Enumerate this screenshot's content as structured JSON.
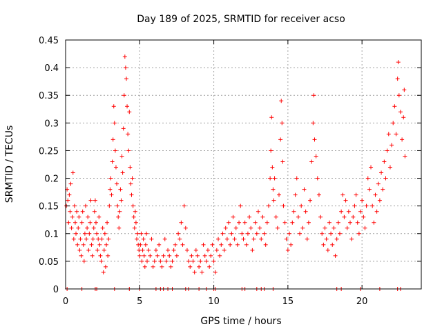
{
  "chart_data": {
    "type": "scatter",
    "title": "Day 189 of 2025, SRMTID for receiver acso",
    "xlabel": "GPS time / hours",
    "ylabel": "SRMTID / TECUs",
    "xlim": [
      0,
      24
    ],
    "ylim": [
      0,
      0.45
    ],
    "x_ticks": [
      0,
      5,
      10,
      15,
      20
    ],
    "x_tick_labels": [
      "0",
      "5",
      "10",
      "15",
      "20"
    ],
    "y_ticks": [
      0,
      0.05,
      0.1,
      0.15,
      0.2,
      0.25,
      0.3,
      0.35,
      0.4,
      0.45
    ],
    "y_tick_labels": [
      "0",
      "0.05",
      "0.1",
      "0.15",
      "0.2",
      "0.25",
      "0.3",
      "0.35",
      "0.4",
      "0.45"
    ],
    "grid": true,
    "marker": "+",
    "color": "#ff0000",
    "zero_marks_x": [
      0.1,
      1.1,
      2.0,
      2.1,
      3.3,
      4.3,
      5.0,
      6.1,
      6.4,
      6.6,
      6.9,
      7.2,
      8.1,
      8.3,
      9.0,
      9.5,
      10.0,
      10.1,
      11.9,
      12.1,
      12.9,
      13.2,
      13.4,
      14.0,
      18.3,
      18.6,
      19.9,
      21.2,
      22.4,
      22.6
    ],
    "series": [
      {
        "name": "SRMTID",
        "points": [
          [
            0.05,
            0.15
          ],
          [
            0.1,
            0.18
          ],
          [
            0.15,
            0.16
          ],
          [
            0.2,
            0.12
          ],
          [
            0.25,
            0.17
          ],
          [
            0.3,
            0.14
          ],
          [
            0.35,
            0.19
          ],
          [
            0.4,
            0.11
          ],
          [
            0.45,
            0.13
          ],
          [
            0.5,
            0.21
          ],
          [
            0.55,
            0.09
          ],
          [
            0.6,
            0.15
          ],
          [
            0.65,
            0.12
          ],
          [
            0.7,
            0.1
          ],
          [
            0.75,
            0.14
          ],
          [
            0.8,
            0.08
          ],
          [
            0.85,
            0.11
          ],
          [
            0.9,
            0.13
          ],
          [
            0.95,
            0.07
          ],
          [
            1.0,
            0.09
          ],
          [
            1.05,
            0.06
          ],
          [
            1.1,
            0.12
          ],
          [
            1.15,
            0.14
          ],
          [
            1.2,
            0.08
          ],
          [
            1.25,
            0.05
          ],
          [
            1.3,
            0.1
          ],
          [
            1.35,
            0.15
          ],
          [
            1.4,
            0.09
          ],
          [
            1.45,
            0.11
          ],
          [
            1.5,
            0.13
          ],
          [
            1.55,
            0.07
          ],
          [
            1.6,
            0.1
          ],
          [
            1.65,
            0.12
          ],
          [
            1.7,
            0.16
          ],
          [
            1.75,
            0.08
          ],
          [
            1.8,
            0.06
          ],
          [
            1.85,
            0.09
          ],
          [
            1.9,
            0.11
          ],
          [
            1.95,
            0.14
          ],
          [
            2.0,
            0.16
          ],
          [
            2.05,
            0.12
          ],
          [
            2.1,
            0.1
          ],
          [
            2.15,
            0.07
          ],
          [
            2.2,
            0.09
          ],
          [
            2.25,
            0.13
          ],
          [
            2.3,
            0.08
          ],
          [
            2.35,
            0.06
          ],
          [
            2.4,
            0.05
          ],
          [
            2.45,
            0.09
          ],
          [
            2.5,
            0.11
          ],
          [
            2.55,
            0.03
          ],
          [
            2.6,
            0.07
          ],
          [
            2.65,
            0.1
          ],
          [
            2.7,
            0.04
          ],
          [
            2.75,
            0.08
          ],
          [
            2.8,
            0.12
          ],
          [
            2.85,
            0.06
          ],
          [
            2.9,
            0.09
          ],
          [
            2.95,
            0.15
          ],
          [
            3.0,
            0.18
          ],
          [
            3.05,
            0.2
          ],
          [
            3.1,
            0.17
          ],
          [
            3.15,
            0.23
          ],
          [
            3.2,
            0.27
          ],
          [
            3.25,
            0.33
          ],
          [
            3.3,
            0.3
          ],
          [
            3.35,
            0.25
          ],
          [
            3.4,
            0.22
          ],
          [
            3.45,
            0.19
          ],
          [
            3.5,
            0.15
          ],
          [
            3.55,
            0.13
          ],
          [
            3.6,
            0.11
          ],
          [
            3.65,
            0.14
          ],
          [
            3.7,
            0.18
          ],
          [
            3.75,
            0.16
          ],
          [
            3.8,
            0.24
          ],
          [
            3.85,
            0.21
          ],
          [
            3.9,
            0.29
          ],
          [
            3.95,
            0.35
          ],
          [
            4.0,
            0.42
          ],
          [
            4.05,
            0.4
          ],
          [
            4.1,
            0.38
          ],
          [
            4.15,
            0.33
          ],
          [
            4.2,
            0.28
          ],
          [
            4.25,
            0.25
          ],
          [
            4.3,
            0.32
          ],
          [
            4.35,
            0.22
          ],
          [
            4.4,
            0.19
          ],
          [
            4.45,
            0.17
          ],
          [
            4.5,
            0.2
          ],
          [
            4.55,
            0.15
          ],
          [
            4.6,
            0.13
          ],
          [
            4.65,
            0.11
          ],
          [
            4.7,
            0.14
          ],
          [
            4.75,
            0.12
          ],
          [
            4.8,
            0.09
          ],
          [
            4.85,
            0.1
          ],
          [
            4.9,
            0.08
          ],
          [
            4.95,
            0.07
          ],
          [
            5.0,
            0.06
          ],
          [
            5.05,
            0.08
          ],
          [
            5.1,
            0.1
          ],
          [
            5.15,
            0.05
          ],
          [
            5.2,
            0.07
          ],
          [
            5.25,
            0.09
          ],
          [
            5.3,
            0.06
          ],
          [
            5.35,
            0.04
          ],
          [
            5.4,
            0.08
          ],
          [
            5.45,
            0.1
          ],
          [
            5.5,
            0.05
          ],
          [
            5.6,
            0.07
          ],
          [
            5.7,
            0.06
          ],
          [
            5.8,
            0.09
          ],
          [
            5.9,
            0.04
          ],
          [
            6.0,
            0.05
          ],
          [
            6.1,
            0.07
          ],
          [
            6.2,
            0.06
          ],
          [
            6.3,
            0.08
          ],
          [
            6.4,
            0.05
          ],
          [
            6.5,
            0.04
          ],
          [
            6.6,
            0.06
          ],
          [
            6.7,
            0.09
          ],
          [
            6.8,
            0.05
          ],
          [
            6.9,
            0.07
          ],
          [
            7.0,
            0.06
          ],
          [
            7.1,
            0.04
          ],
          [
            7.2,
            0.05
          ],
          [
            7.3,
            0.07
          ],
          [
            7.4,
            0.08
          ],
          [
            7.5,
            0.06
          ],
          [
            7.6,
            0.1
          ],
          [
            7.7,
            0.09
          ],
          [
            7.8,
            0.12
          ],
          [
            7.9,
            0.08
          ],
          [
            8.0,
            0.15
          ],
          [
            8.1,
            0.11
          ],
          [
            8.2,
            0.07
          ],
          [
            8.3,
            0.05
          ],
          [
            8.4,
            0.04
          ],
          [
            8.5,
            0.06
          ],
          [
            8.6,
            0.05
          ],
          [
            8.7,
            0.03
          ],
          [
            8.8,
            0.07
          ],
          [
            8.9,
            0.06
          ],
          [
            9.0,
            0.04
          ],
          [
            9.1,
            0.05
          ],
          [
            9.2,
            0.03
          ],
          [
            9.3,
            0.08
          ],
          [
            9.4,
            0.06
          ],
          [
            9.5,
            0.05
          ],
          [
            9.6,
            0.07
          ],
          [
            9.7,
            0.04
          ],
          [
            9.8,
            0.06
          ],
          [
            9.9,
            0.08
          ],
          [
            10.0,
            0.05
          ],
          [
            10.1,
            0.03
          ],
          [
            10.2,
            0.07
          ],
          [
            10.3,
            0.09
          ],
          [
            10.4,
            0.06
          ],
          [
            10.5,
            0.08
          ],
          [
            10.6,
            0.1
          ],
          [
            10.7,
            0.07
          ],
          [
            10.8,
            0.11
          ],
          [
            10.9,
            0.09
          ],
          [
            11.0,
            0.12
          ],
          [
            11.1,
            0.08
          ],
          [
            11.2,
            0.1
          ],
          [
            11.3,
            0.13
          ],
          [
            11.4,
            0.09
          ],
          [
            11.5,
            0.11
          ],
          [
            11.6,
            0.08
          ],
          [
            11.7,
            0.12
          ],
          [
            11.8,
            0.15
          ],
          [
            11.9,
            0.1
          ],
          [
            12.0,
            0.09
          ],
          [
            12.1,
            0.12
          ],
          [
            12.2,
            0.08
          ],
          [
            12.3,
            0.1
          ],
          [
            12.4,
            0.13
          ],
          [
            12.5,
            0.11
          ],
          [
            12.6,
            0.07
          ],
          [
            12.7,
            0.09
          ],
          [
            12.8,
            0.12
          ],
          [
            12.9,
            0.1
          ],
          [
            13.0,
            0.14
          ],
          [
            13.1,
            0.11
          ],
          [
            13.2,
            0.09
          ],
          [
            13.3,
            0.13
          ],
          [
            13.4,
            0.1
          ],
          [
            13.5,
            0.08
          ],
          [
            13.6,
            0.12
          ],
          [
            13.7,
            0.15
          ],
          [
            13.8,
            0.2
          ],
          [
            13.85,
            0.25
          ],
          [
            13.9,
            0.31
          ],
          [
            13.95,
            0.22
          ],
          [
            14.0,
            0.18
          ],
          [
            14.05,
            0.16
          ],
          [
            14.1,
            0.2
          ],
          [
            14.2,
            0.13
          ],
          [
            14.3,
            0.11
          ],
          [
            14.4,
            0.17
          ],
          [
            14.5,
            0.27
          ],
          [
            14.55,
            0.34
          ],
          [
            14.6,
            0.3
          ],
          [
            14.65,
            0.23
          ],
          [
            14.7,
            0.15
          ],
          [
            14.8,
            0.12
          ],
          [
            14.9,
            0.09
          ],
          [
            15.0,
            0.07
          ],
          [
            15.1,
            0.1
          ],
          [
            15.2,
            0.08
          ],
          [
            15.3,
            0.12
          ],
          [
            15.4,
            0.14
          ],
          [
            15.5,
            0.17
          ],
          [
            15.6,
            0.2
          ],
          [
            15.7,
            0.13
          ],
          [
            15.8,
            0.1
          ],
          [
            15.9,
            0.15
          ],
          [
            16.0,
            0.11
          ],
          [
            16.1,
            0.18
          ],
          [
            16.2,
            0.14
          ],
          [
            16.3,
            0.09
          ],
          [
            16.4,
            0.12
          ],
          [
            16.5,
            0.16
          ],
          [
            16.6,
            0.23
          ],
          [
            16.7,
            0.3
          ],
          [
            16.75,
            0.35
          ],
          [
            16.8,
            0.27
          ],
          [
            16.9,
            0.24
          ],
          [
            17.0,
            0.2
          ],
          [
            17.1,
            0.17
          ],
          [
            17.2,
            0.13
          ],
          [
            17.3,
            0.1
          ],
          [
            17.4,
            0.08
          ],
          [
            17.5,
            0.11
          ],
          [
            17.6,
            0.09
          ],
          [
            17.7,
            0.07
          ],
          [
            17.8,
            0.12
          ],
          [
            17.9,
            0.1
          ],
          [
            18.0,
            0.08
          ],
          [
            18.1,
            0.11
          ],
          [
            18.2,
            0.06
          ],
          [
            18.3,
            0.09
          ],
          [
            18.4,
            0.12
          ],
          [
            18.5,
            0.1
          ],
          [
            18.6,
            0.14
          ],
          [
            18.7,
            0.17
          ],
          [
            18.8,
            0.13
          ],
          [
            18.9,
            0.16
          ],
          [
            19.0,
            0.11
          ],
          [
            19.1,
            0.14
          ],
          [
            19.2,
            0.12
          ],
          [
            19.3,
            0.09
          ],
          [
            19.4,
            0.13
          ],
          [
            19.5,
            0.15
          ],
          [
            19.6,
            0.17
          ],
          [
            19.7,
            0.12
          ],
          [
            19.8,
            0.1
          ],
          [
            19.9,
            0.14
          ],
          [
            20.0,
            0.16
          ],
          [
            20.1,
            0.13
          ],
          [
            20.2,
            0.11
          ],
          [
            20.3,
            0.15
          ],
          [
            20.4,
            0.2
          ],
          [
            20.5,
            0.18
          ],
          [
            20.6,
            0.22
          ],
          [
            20.7,
            0.15
          ],
          [
            20.8,
            0.12
          ],
          [
            20.9,
            0.17
          ],
          [
            21.0,
            0.14
          ],
          [
            21.1,
            0.19
          ],
          [
            21.2,
            0.16
          ],
          [
            21.3,
            0.21
          ],
          [
            21.4,
            0.18
          ],
          [
            21.5,
            0.23
          ],
          [
            21.6,
            0.2
          ],
          [
            21.7,
            0.25
          ],
          [
            21.8,
            0.28
          ],
          [
            21.9,
            0.22
          ],
          [
            22.0,
            0.26
          ],
          [
            22.1,
            0.3
          ],
          [
            22.2,
            0.33
          ],
          [
            22.3,
            0.28
          ],
          [
            22.4,
            0.38
          ],
          [
            22.45,
            0.41
          ],
          [
            22.5,
            0.35
          ],
          [
            22.6,
            0.32
          ],
          [
            22.7,
            0.27
          ],
          [
            22.8,
            0.31
          ],
          [
            22.85,
            0.36
          ],
          [
            22.9,
            0.24
          ]
        ]
      }
    ]
  }
}
